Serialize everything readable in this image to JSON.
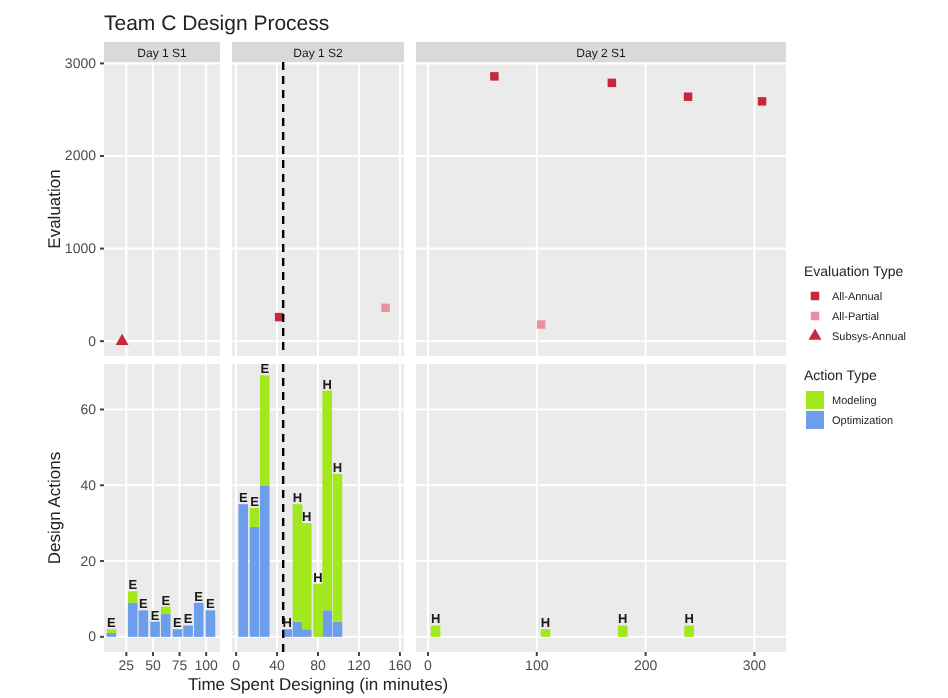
{
  "chart_data": [
    {
      "type": "scatter",
      "title": "Team C Design Process",
      "subtitle": "Day 1 S1",
      "ylabel": "Evaluation",
      "xlim": [
        4,
        113
      ],
      "xticks": [
        25,
        50,
        75,
        100
      ],
      "ylim": [
        -160,
        3015
      ],
      "yticks": [
        0,
        1000,
        2000,
        3000
      ],
      "grid": true,
      "tick_labels": "y",
      "series": [
        {
          "name": "Subsys-Annual",
          "color": "#c8283e",
          "marker": "triangle",
          "x": [
            21
          ],
          "values": [
            0
          ]
        }
      ],
      "legend": "right"
    },
    {
      "type": "scatter",
      "subtitle": "Day 1 S2",
      "xlim": [
        -4,
        164
      ],
      "xticks": [
        0,
        40,
        80,
        120,
        160
      ],
      "ylim": [
        -160,
        3015
      ],
      "yticks": [
        0,
        1000,
        2000,
        3000
      ],
      "grid": true,
      "tick_labels": false,
      "ref_lines": [
        {
          "axis": "x",
          "value": 46,
          "color": "#000000",
          "line_style": "dashed"
        }
      ],
      "series": [
        {
          "color": "#c8283e",
          "marker": "square",
          "x": [
            42
          ],
          "values": [
            260
          ]
        },
        {
          "color": "#e8909f",
          "marker": "square",
          "x": [
            146
          ],
          "values": [
            360
          ]
        }
      ]
    },
    {
      "type": "scatter",
      "subtitle": "Day 2 S1",
      "xlim": [
        -11,
        329
      ],
      "xticks": [
        0,
        100,
        200,
        300
      ],
      "ylim": [
        -160,
        3015
      ],
      "yticks": [
        0,
        1000,
        2000,
        3000
      ],
      "grid": true,
      "tick_labels": false,
      "legend": "right",
      "legend_title": "Evaluation Type",
      "series": [
        {
          "name": "All-Annual",
          "color": "#c8283e",
          "marker": "square",
          "x": [
            61,
            169,
            239,
            307
          ],
          "values": [
            2860,
            2790,
            2640,
            2590
          ]
        },
        {
          "name": "All-Partial",
          "color": "#e8909f",
          "marker": "square",
          "x": [
            104
          ],
          "values": [
            180
          ]
        }
      ]
    },
    {
      "type": "bar",
      "stacked": true,
      "ylabel": "Design Actions",
      "xlim": [
        4,
        113
      ],
      "xticks": [
        25,
        50,
        75,
        100
      ],
      "ylim": [
        -4,
        72
      ],
      "yticks": [
        0,
        20,
        40,
        60
      ],
      "grid": true,
      "x": [
        11,
        31,
        41,
        52,
        62,
        73,
        83,
        93,
        104
      ],
      "series": [
        {
          "color": "#6d9eeb",
          "values": [
            1,
            9,
            7,
            4,
            6,
            2,
            3,
            9,
            7
          ]
        },
        {
          "color": "#a3e81c",
          "values": [
            1,
            3,
            0,
            0,
            2,
            0,
            0,
            0,
            0
          ]
        }
      ],
      "annotations": [
        {
          "text": "E",
          "x": 11,
          "y": 2
        },
        {
          "text": "E",
          "x": 31,
          "y": 12
        },
        {
          "text": "E",
          "x": 41,
          "y": 7
        },
        {
          "text": "E",
          "x": 52,
          "y": 4
        },
        {
          "text": "E",
          "x": 62,
          "y": 8
        },
        {
          "text": "E",
          "x": 73,
          "y": 2
        },
        {
          "text": "E",
          "x": 83,
          "y": 3
        },
        {
          "text": "E",
          "x": 93,
          "y": 9
        },
        {
          "text": "E",
          "x": 104,
          "y": 7
        }
      ]
    },
    {
      "type": "bar",
      "stacked": true,
      "xlabel": "Time Spent Designing (in minutes)",
      "xlim": [
        -4,
        164
      ],
      "xticks": [
        0,
        40,
        80,
        120,
        160
      ],
      "ylim": [
        -4,
        72
      ],
      "yticks": [
        0,
        20,
        40,
        60
      ],
      "grid": true,
      "tick_labels": "x",
      "ref_lines": [
        {
          "axis": "x",
          "value": 46,
          "color": "#000000",
          "line_style": "dashed"
        }
      ],
      "x": [
        7,
        18,
        28,
        50,
        60,
        69,
        80,
        89,
        99
      ],
      "series": [
        {
          "color": "#6d9eeb",
          "values": [
            35,
            29,
            40,
            2,
            4,
            2,
            0,
            7,
            4
          ]
        },
        {
          "color": "#a3e81c",
          "values": [
            0,
            5,
            29,
            0,
            31,
            28,
            14,
            58,
            39
          ]
        }
      ],
      "annotations": [
        {
          "text": "E",
          "x": 7,
          "y": 35
        },
        {
          "text": "E",
          "x": 18,
          "y": 34
        },
        {
          "text": "E",
          "x": 28,
          "y": 69
        },
        {
          "text": "H",
          "x": 50,
          "y": 2
        },
        {
          "text": "H",
          "x": 60,
          "y": 35
        },
        {
          "text": "H",
          "x": 69,
          "y": 30
        },
        {
          "text": "H",
          "x": 80,
          "y": 14
        },
        {
          "text": "H",
          "x": 89,
          "y": 65
        },
        {
          "text": "H",
          "x": 99,
          "y": 43
        }
      ]
    },
    {
      "type": "bar",
      "stacked": true,
      "xlim": [
        -11,
        329
      ],
      "xticks": [
        0,
        100,
        200,
        300
      ],
      "ylim": [
        -4,
        72
      ],
      "yticks": [
        0,
        20,
        40,
        60
      ],
      "grid": true,
      "tick_labels": "x",
      "legend": "right",
      "legend_title": "Action Type",
      "x": [
        7,
        108,
        179,
        240
      ],
      "series": [
        {
          "name": "Optimization",
          "color": "#6d9eeb",
          "values": [
            0,
            0,
            0,
            0
          ]
        },
        {
          "name": "Modeling",
          "color": "#a3e81c",
          "values": [
            3,
            2,
            3,
            3
          ]
        }
      ],
      "annotations": [
        {
          "text": "H",
          "x": 7,
          "y": 3
        },
        {
          "text": "H",
          "x": 108,
          "y": 2
        },
        {
          "text": "H",
          "x": 179,
          "y": 3
        },
        {
          "text": "H",
          "x": 240,
          "y": 3
        }
      ]
    }
  ]
}
